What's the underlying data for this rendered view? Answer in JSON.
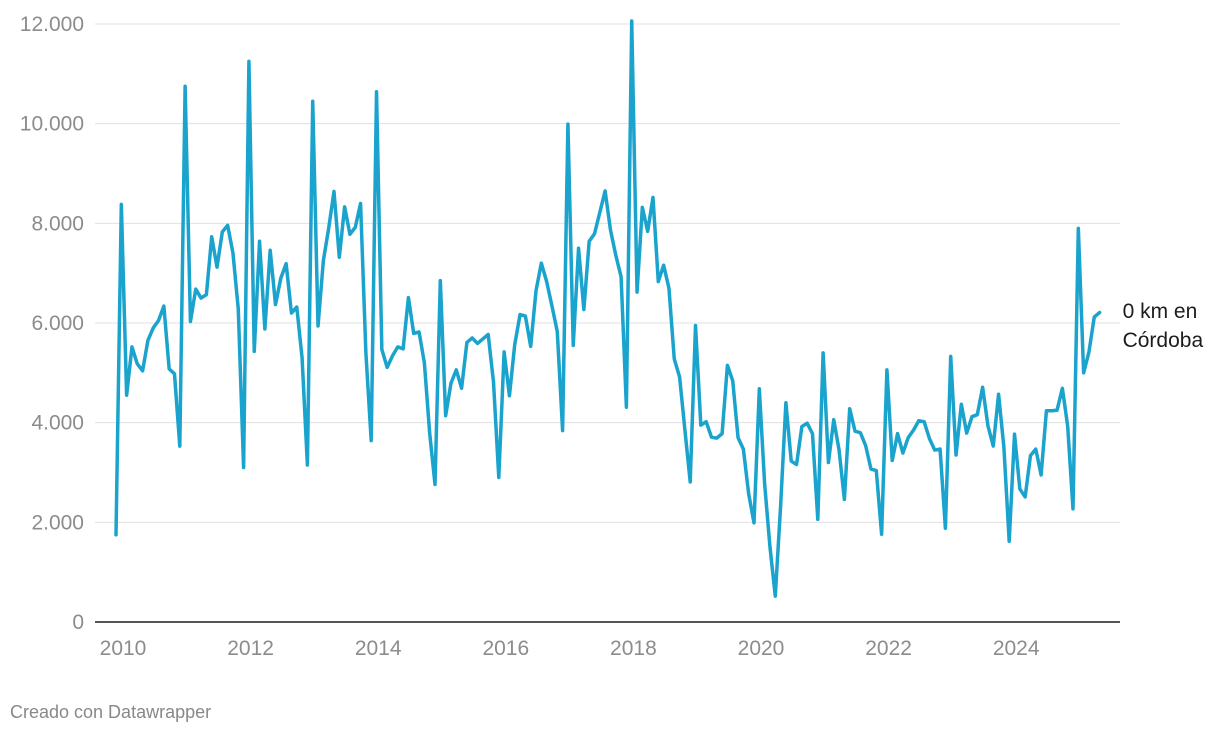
{
  "chart_data": {
    "type": "line",
    "title": "",
    "xlabel": "",
    "ylabel": "",
    "xlim": [
      2010,
      2025.5
    ],
    "ylim": [
      0,
      12000
    ],
    "x_ticks": [
      "2010",
      "2012",
      "2014",
      "2016",
      "2018",
      "2020",
      "2022",
      "2024"
    ],
    "y_ticks": [
      "0",
      "2.000",
      "4.000",
      "6.000",
      "8.000",
      "10.000",
      "12.000"
    ],
    "grid": "horizontal",
    "series": [
      {
        "name": "0 km en Córdoba",
        "name_lines": [
          "0 km en",
          "Córdoba"
        ],
        "color": "#1aa3cc",
        "x_start": "2010-01",
        "frequency": "monthly",
        "values": [
          1750,
          8380,
          4550,
          5520,
          5180,
          5040,
          5650,
          5900,
          6050,
          6340,
          5080,
          4980,
          3530,
          10750,
          6030,
          6680,
          6500,
          6570,
          7730,
          7120,
          7830,
          7960,
          7400,
          6280,
          3100,
          11250,
          5430,
          7640,
          5880,
          7460,
          6370,
          6900,
          7190,
          6200,
          6320,
          5300,
          3150,
          10450,
          5940,
          7250,
          7900,
          8640,
          7320,
          8330,
          7780,
          7920,
          8400,
          5400,
          3640,
          10640,
          5470,
          5110,
          5340,
          5520,
          5480,
          6510,
          5790,
          5820,
          5200,
          3790,
          2760,
          6850,
          4140,
          4790,
          5060,
          4690,
          5610,
          5700,
          5590,
          5680,
          5770,
          4820,
          2900,
          5420,
          4540,
          5570,
          6170,
          6140,
          5530,
          6650,
          7200,
          6830,
          6340,
          5830,
          3840,
          9990,
          5550,
          7500,
          6270,
          7640,
          7790,
          8220,
          8650,
          7870,
          7360,
          6930,
          4310,
          12060,
          6620,
          8320,
          7840,
          8520,
          6830,
          7160,
          6700,
          5280,
          4920,
          3860,
          2810,
          5950,
          3950,
          4020,
          3710,
          3690,
          3780,
          5150,
          4840,
          3700,
          3470,
          2570,
          1990,
          4680,
          2770,
          1510,
          520,
          2320,
          4400,
          3230,
          3160,
          3920,
          3990,
          3780,
          2060,
          5400,
          3200,
          4060,
          3450,
          2460,
          4280,
          3830,
          3800,
          3540,
          3070,
          3040,
          1760,
          5060,
          3240,
          3780,
          3390,
          3700,
          3850,
          4040,
          4020,
          3680,
          3450,
          3470,
          1880,
          5330,
          3350,
          4370,
          3790,
          4120,
          4160,
          4710,
          3940,
          3530,
          4570,
          3510,
          1620,
          3770,
          2670,
          2510,
          3340,
          3470,
          2950,
          4240,
          4240,
          4250,
          4690,
          3930,
          2270,
          7900,
          5000,
          5420,
          6120,
          6210
        ]
      }
    ]
  },
  "footer": {
    "credit": "Creado con Datawrapper"
  }
}
